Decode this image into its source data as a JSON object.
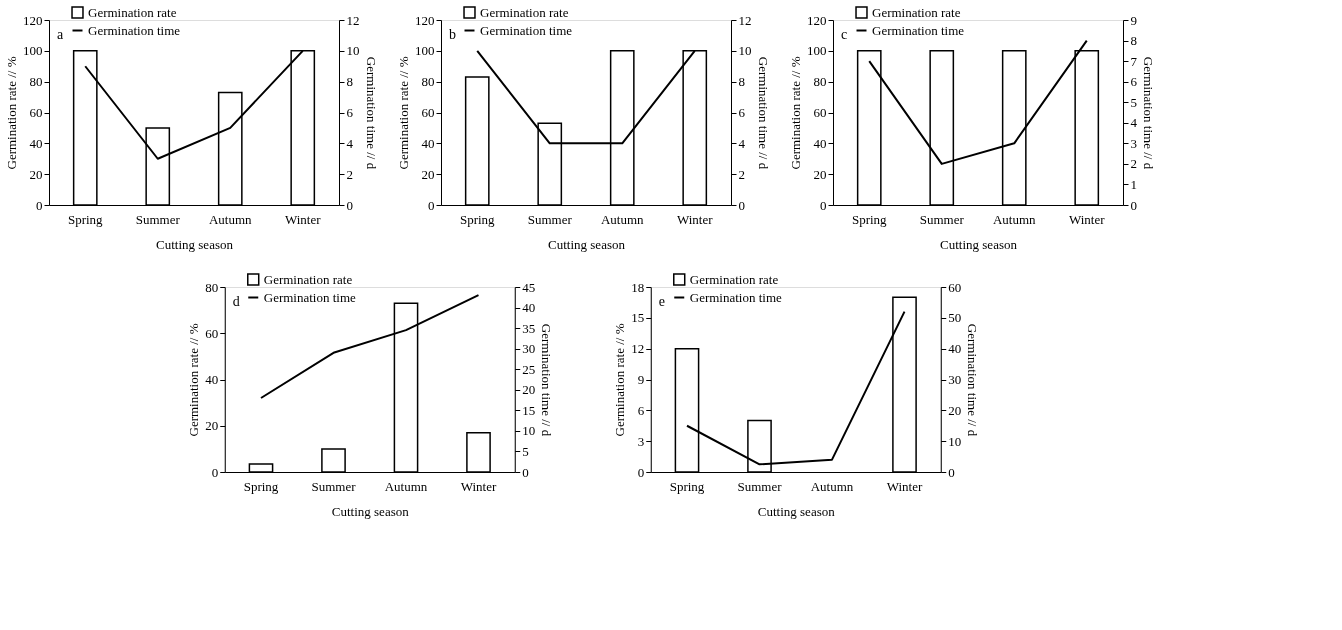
{
  "chart_data": [
    {
      "type": "bar",
      "categories": [
        "Spring",
        "Summer",
        "Autumn",
        "Winter"
      ],
      "xlabel": "Cutting season",
      "ylabel": "Germination rate // %",
      "y2label": "Germination time // d",
      "annotations": [
        "a"
      ],
      "legend": "top left",
      "ylim": [
        0,
        120
      ],
      "yticks": [
        0,
        20,
        40,
        60,
        80,
        100,
        120
      ],
      "y2lim": [
        0,
        12
      ],
      "y2ticks": [
        0,
        2,
        4,
        6,
        8,
        10,
        12
      ],
      "series": [
        {
          "name": "Germination rate",
          "color": "#ffffff",
          "values": [
            100,
            50,
            73,
            100
          ]
        },
        {
          "name": "Germination time",
          "type": "line",
          "axis": "y2",
          "color": "#000000",
          "values": [
            9,
            3,
            5,
            10
          ]
        }
      ]
    },
    {
      "type": "bar",
      "categories": [
        "Spring",
        "Summer",
        "Autumn",
        "Winter"
      ],
      "xlabel": "Cutting season",
      "ylabel": "Germination rate // %",
      "y2label": "Germination time // d",
      "annotations": [
        "b"
      ],
      "legend": "top left",
      "ylim": [
        0,
        120
      ],
      "yticks": [
        0,
        20,
        40,
        60,
        80,
        100,
        120
      ],
      "y2lim": [
        0,
        12
      ],
      "y2ticks": [
        0,
        2,
        4,
        6,
        8,
        10,
        12
      ],
      "series": [
        {
          "name": "Germination rate",
          "color": "#ffffff",
          "values": [
            83,
            53,
            100,
            100
          ]
        },
        {
          "name": "Germination time",
          "type": "line",
          "axis": "y2",
          "color": "#000000",
          "values": [
            10,
            4,
            4,
            10
          ]
        }
      ]
    },
    {
      "type": "bar",
      "categories": [
        "Spring",
        "Summer",
        "Autumn",
        "Winter"
      ],
      "xlabel": "Cutting season",
      "ylabel": "Germination rate // %",
      "y2label": "Germination time // d",
      "annotations": [
        "c"
      ],
      "legend": "top left",
      "ylim": [
        0,
        120
      ],
      "yticks": [
        0,
        20,
        40,
        60,
        80,
        100,
        120
      ],
      "y2lim": [
        0,
        9
      ],
      "y2ticks": [
        0,
        1,
        2,
        3,
        4,
        5,
        6,
        7,
        8,
        9
      ],
      "series": [
        {
          "name": "Germination rate",
          "color": "#ffffff",
          "values": [
            100,
            100,
            100,
            100
          ]
        },
        {
          "name": "Germination time",
          "type": "line",
          "axis": "y2",
          "color": "#000000",
          "values": [
            7,
            2,
            3,
            8
          ]
        }
      ]
    },
    {
      "type": "bar",
      "categories": [
        "Spring",
        "Summer",
        "Autumn",
        "Winter"
      ],
      "xlabel": "Cutting season",
      "ylabel": "Germination rate // %",
      "y2label": "Germination time // d",
      "annotations": [
        "d"
      ],
      "legend": "top left",
      "ylim": [
        0,
        80
      ],
      "yticks": [
        0,
        20,
        40,
        60,
        80
      ],
      "y2lim": [
        0,
        45
      ],
      "y2ticks": [
        0,
        5,
        10,
        15,
        20,
        25,
        30,
        35,
        40,
        45
      ],
      "series": [
        {
          "name": "Germination rate",
          "color": "#ffffff",
          "values": [
            3.5,
            10,
            73,
            17
          ]
        },
        {
          "name": "Germination time",
          "type": "line",
          "axis": "y2",
          "color": "#000000",
          "values": [
            18,
            29,
            34.5,
            43
          ]
        }
      ]
    },
    {
      "type": "bar",
      "categories": [
        "Spring",
        "Summer",
        "Autumn",
        "Winter"
      ],
      "xlabel": "Cutting season",
      "ylabel": "Germination rate // %",
      "y2label": "Germination time // d",
      "annotations": [
        "e"
      ],
      "legend": "top left",
      "ylim": [
        0,
        18
      ],
      "yticks": [
        0,
        3,
        6,
        9,
        12,
        15,
        18
      ],
      "y2lim": [
        0,
        60
      ],
      "y2ticks": [
        0,
        10,
        20,
        30,
        40,
        50,
        60
      ],
      "series": [
        {
          "name": "Germination rate",
          "color": "#ffffff",
          "values": [
            12,
            5,
            null,
            17
          ]
        },
        {
          "name": "Germination time",
          "type": "line",
          "axis": "y2",
          "color": "#000000",
          "values": [
            15,
            2.5,
            4,
            52
          ]
        }
      ]
    }
  ]
}
